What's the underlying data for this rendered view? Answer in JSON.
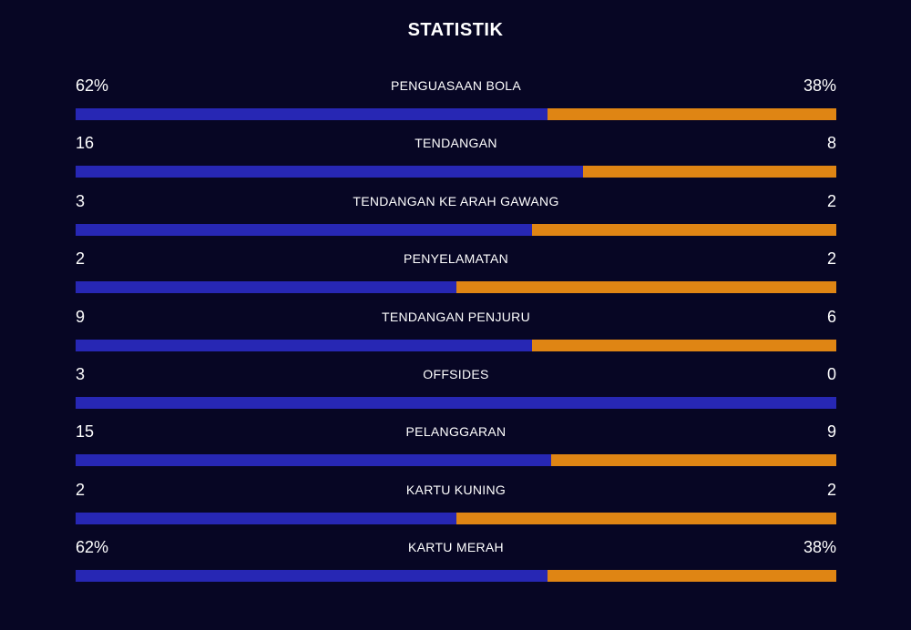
{
  "title": "STATISTIK",
  "colors": {
    "home": "#2727b4",
    "away": "#df8514",
    "background": "#070624"
  },
  "stats": [
    {
      "label": "PENGUASAAN BOLA",
      "home": "62%",
      "away": "38%",
      "home_share": 0.62
    },
    {
      "label": "TENDANGAN",
      "home": "16",
      "away": "8",
      "home_share": 0.667
    },
    {
      "label": "TENDANGAN KE ARAH GAWANG",
      "home": "3",
      "away": "2",
      "home_share": 0.6
    },
    {
      "label": "PENYELAMATAN",
      "home": "2",
      "away": "2",
      "home_share": 0.5
    },
    {
      "label": "TENDANGAN PENJURU",
      "home": "9",
      "away": "6",
      "home_share": 0.6
    },
    {
      "label": "OFFSIDES",
      "home": "3",
      "away": "0",
      "home_share": 1.0
    },
    {
      "label": "PELANGGARAN",
      "home": "15",
      "away": "9",
      "home_share": 0.625
    },
    {
      "label": "KARTU KUNING",
      "home": "2",
      "away": "2",
      "home_share": 0.5
    },
    {
      "label": "KARTU MERAH",
      "home": "62%",
      "away": "38%",
      "home_share": 0.62
    }
  ]
}
